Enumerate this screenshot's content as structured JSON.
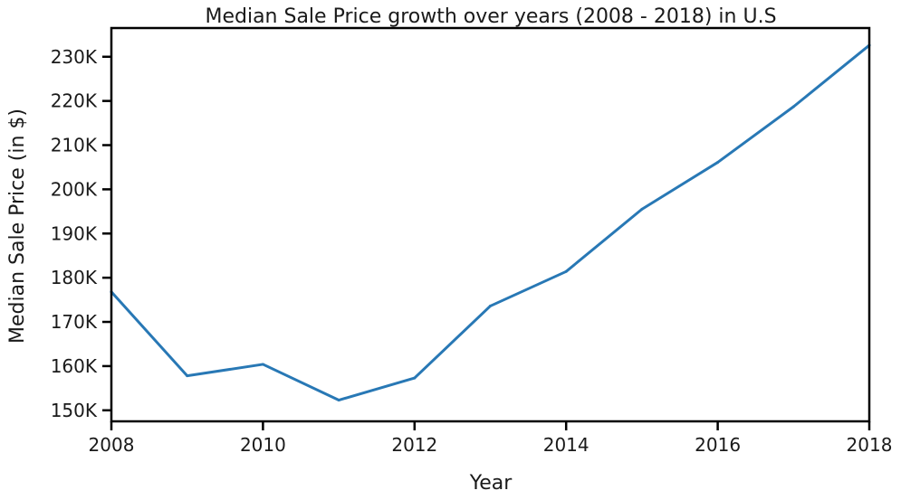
{
  "chart_data": {
    "type": "line",
    "title": "Median Sale Price growth over years (2008 - 2018) in U.S",
    "xlabel": "Year",
    "ylabel": "Median Sale Price (in $)",
    "x": [
      2008,
      2009,
      2010,
      2011,
      2012,
      2013,
      2014,
      2015,
      2016,
      2017,
      2018
    ],
    "series": [
      {
        "values": [
          176800,
          157800,
          160400,
          152300,
          157300,
          173600,
          181400,
          195500,
          206100,
          218700,
          232600
        ]
      }
    ],
    "xlim": [
      2008,
      2018
    ],
    "ylim": [
      147500,
      236500
    ],
    "x_ticks": [
      2008,
      2010,
      2012,
      2014,
      2016,
      2018
    ],
    "x_tick_labels": [
      "2008",
      "2010",
      "2012",
      "2014",
      "2016",
      "2018"
    ],
    "y_ticks": [
      150000,
      160000,
      170000,
      180000,
      190000,
      200000,
      210000,
      220000,
      230000
    ],
    "y_tick_labels": [
      "150K",
      "160K",
      "170K",
      "180K",
      "190K",
      "200K",
      "210K",
      "220K",
      "230K"
    ],
    "grid": false,
    "line_color": "#2878b5"
  }
}
